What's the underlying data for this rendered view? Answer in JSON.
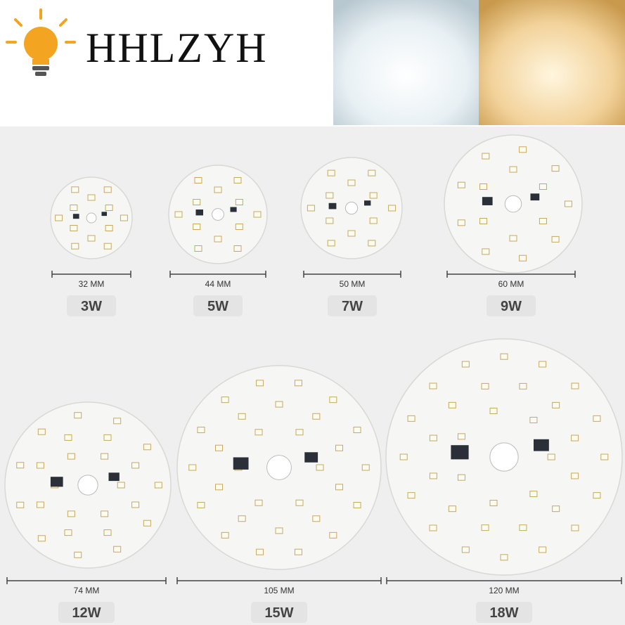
{
  "header": {
    "brand": "HHLZYH"
  },
  "products": [
    {
      "size": "32 MM",
      "power": "3W"
    },
    {
      "size": "44 MM",
      "power": "5W"
    },
    {
      "size": "50 MM",
      "power": "7W"
    },
    {
      "size": "60 MM",
      "power": "9W"
    },
    {
      "size": "74 MM",
      "power": "12W"
    },
    {
      "size": "105 MM",
      "power": "15W"
    },
    {
      "size": "120 MM",
      "power": "18W"
    }
  ]
}
